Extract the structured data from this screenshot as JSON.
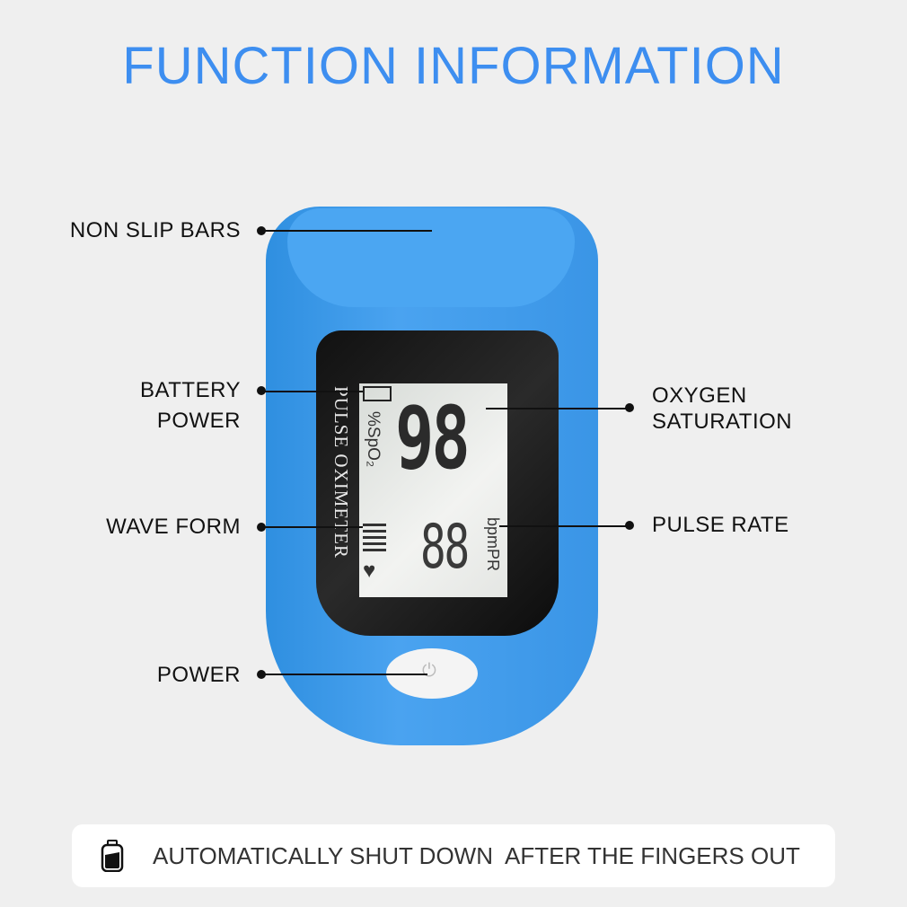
{
  "title": "FUNCTION INFORMATION",
  "device": {
    "brand": "PULSE OXIMETER",
    "spo2_unit": "%SpO₂",
    "spo2_value": "98",
    "pulse_value": "88",
    "pulse_unit": "bpmPR",
    "device_color": "#3a95e6"
  },
  "callouts": {
    "non_slip_bars": "NON SLIP BARS",
    "battery_power": [
      "BATTERY",
      "POWER"
    ],
    "wave_form": "WAVE FORM",
    "power": "POWER",
    "oxygen_saturation": [
      "OXYGEN",
      "SATURATION"
    ],
    "pulse_rate": "PULSE RATE"
  },
  "banner": {
    "text": "AUTOMATICALLY SHUT DOWN  AFTER THE FINGERS OUT",
    "icon": "battery-icon"
  },
  "colors": {
    "title": "#3d8ef0",
    "background": "#efefef"
  }
}
